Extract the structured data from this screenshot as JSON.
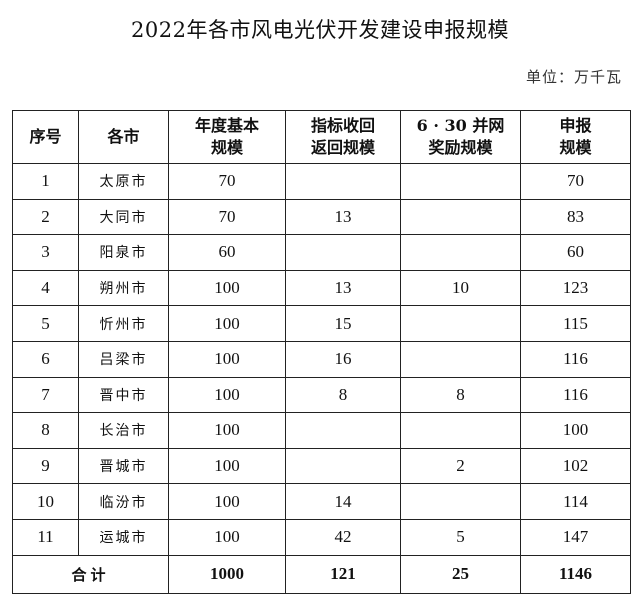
{
  "title": "2022年各市风电光伏开发建设申报规模",
  "unit": "单位：万千瓦",
  "headers": [
    [
      "序号"
    ],
    [
      "各市"
    ],
    [
      "年度基本",
      "规模"
    ],
    [
      "指标收回",
      "返回规模"
    ],
    [
      "6 · 30 并网",
      "奖励规模"
    ],
    [
      "申报",
      "规模"
    ]
  ],
  "rows": [
    [
      "1",
      "太原市",
      "70",
      "",
      "",
      "70"
    ],
    [
      "2",
      "大同市",
      "70",
      "13",
      "",
      "83"
    ],
    [
      "3",
      "阳泉市",
      "60",
      "",
      "",
      "60"
    ],
    [
      "4",
      "朔州市",
      "100",
      "13",
      "10",
      "123"
    ],
    [
      "5",
      "忻州市",
      "100",
      "15",
      "",
      "115"
    ],
    [
      "6",
      "吕梁市",
      "100",
      "16",
      "",
      "116"
    ],
    [
      "7",
      "晋中市",
      "100",
      "8",
      "8",
      "116"
    ],
    [
      "8",
      "长治市",
      "100",
      "",
      "",
      "100"
    ],
    [
      "9",
      "晋城市",
      "100",
      "",
      "2",
      "102"
    ],
    [
      "10",
      "临汾市",
      "100",
      "14",
      "",
      "114"
    ],
    [
      "11",
      "运城市",
      "100",
      "42",
      "5",
      "147"
    ]
  ],
  "total": [
    "合计",
    "1000",
    "121",
    "25",
    "1146"
  ]
}
